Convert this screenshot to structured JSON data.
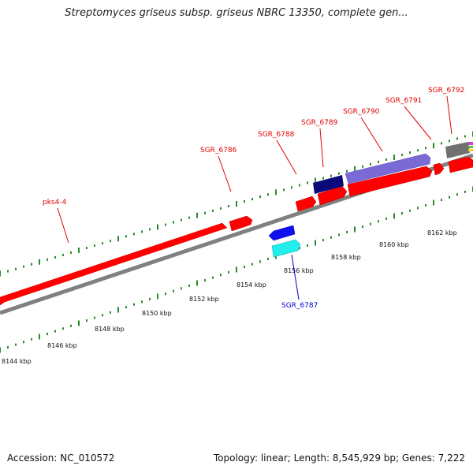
{
  "title": "Streptomyces griseus subsp. griseus NBRC 13350, complete gen...",
  "footer": {
    "accession": "Accession: NC_010572",
    "stats": "Topology: linear; Length: 8,545,929 bp; Genes: 7,222"
  },
  "colors": {
    "tick": "#2a8a2a",
    "backbone": "#808080",
    "forward_gene": "#ff0000",
    "label_forward": "#e00000",
    "label_reverse": "#0000cc"
  },
  "scale_labels": [
    "8144 kbp",
    "8146 kbp",
    "8148 kbp",
    "8150 kbp",
    "8152 kbp",
    "8154 kbp",
    "8156 kbp",
    "8158 kbp",
    "8160 kbp",
    "8162 kbp"
  ],
  "gene_labels": [
    {
      "id": "pks4-4",
      "text": "pks4-4",
      "strand": "forward"
    },
    {
      "id": "sgr-6786",
      "text": "SGR_6786",
      "strand": "forward"
    },
    {
      "id": "sgr-6788",
      "text": "SGR_6788",
      "strand": "forward"
    },
    {
      "id": "sgr-6789",
      "text": "SGR_6789",
      "strand": "forward"
    },
    {
      "id": "sgr-6790",
      "text": "SGR_6790",
      "strand": "forward"
    },
    {
      "id": "sgr-6791",
      "text": "SGR_6791",
      "strand": "forward"
    },
    {
      "id": "sgr-6792",
      "text": "SGR_6792",
      "strand": "forward"
    },
    {
      "id": "sgr-6787",
      "text": "SGR_6787",
      "strand": "reverse"
    }
  ]
}
